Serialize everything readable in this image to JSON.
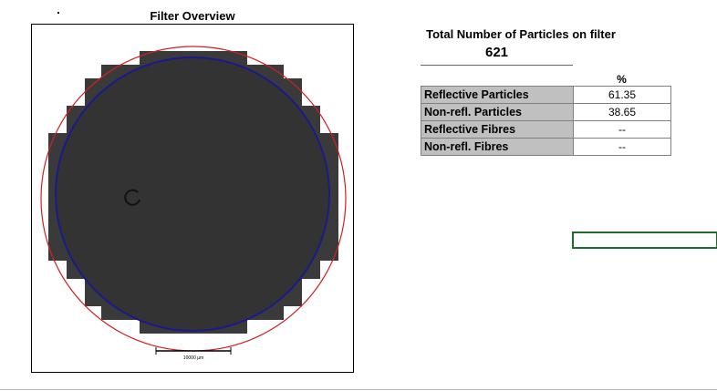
{
  "filter": {
    "title": "Filter Overview",
    "scale_label": "10000 µm"
  },
  "summary": {
    "label": "Total Number of Particles on filter",
    "value": 621
  },
  "table": {
    "header": "%",
    "rows": [
      [
        "Reflective Particles",
        "61.35"
      ],
      [
        "Non-refl. Particles",
        "38.65"
      ],
      [
        "Reflective Fibres",
        "--"
      ],
      [
        "Non-refl. Fibres",
        "--"
      ]
    ]
  }
}
